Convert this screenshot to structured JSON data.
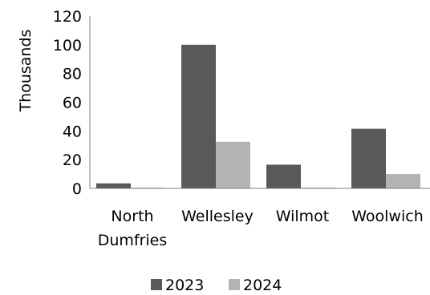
{
  "chart_data": {
    "type": "bar",
    "title": "",
    "xlabel": "",
    "ylabel": "Thousands",
    "ylim": [
      0,
      120
    ],
    "yticks": [
      0,
      20,
      40,
      60,
      80,
      100,
      120
    ],
    "categories": [
      [
        "North",
        "Dumfries"
      ],
      [
        "Wellesley"
      ],
      [
        "Wilmot"
      ],
      [
        "Woolwich"
      ]
    ],
    "series": [
      {
        "name": "2023",
        "values": [
          3.5,
          100,
          16.5,
          41.5
        ],
        "color": "#595959"
      },
      {
        "name": "2024",
        "values": [
          0.5,
          32.5,
          0.5,
          10
        ],
        "color": "#b3b3b3"
      }
    ],
    "grid": false,
    "legend_position": "bottom"
  }
}
